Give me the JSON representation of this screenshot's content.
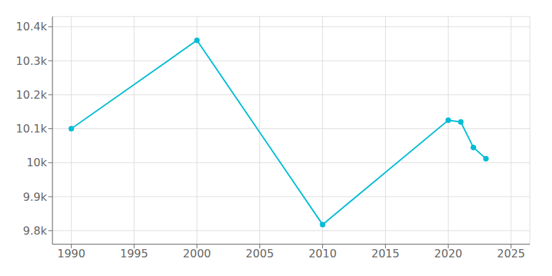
{
  "chart_data": {
    "type": "line",
    "x": [
      1990,
      2000,
      2010,
      2020,
      2021,
      2022,
      2023
    ],
    "values": [
      10100,
      10360,
      9818,
      10125,
      10120,
      10045,
      10012
    ],
    "color": "#00bcd4",
    "marker": "circle",
    "xlim": [
      1988.5,
      2026.5
    ],
    "ylim": [
      9760,
      10430
    ],
    "xticks": [
      1990,
      1995,
      2000,
      2005,
      2010,
      2015,
      2020,
      2025
    ],
    "yticks": [
      {
        "value": 9800,
        "label": "9.8k"
      },
      {
        "value": 9900,
        "label": "9.9k"
      },
      {
        "value": 10000,
        "label": "10k"
      },
      {
        "value": 10100,
        "label": "10.1k"
      },
      {
        "value": 10200,
        "label": "10.2k"
      },
      {
        "value": 10300,
        "label": "10.3k"
      },
      {
        "value": 10400,
        "label": "10.4k"
      }
    ],
    "grid": true
  }
}
